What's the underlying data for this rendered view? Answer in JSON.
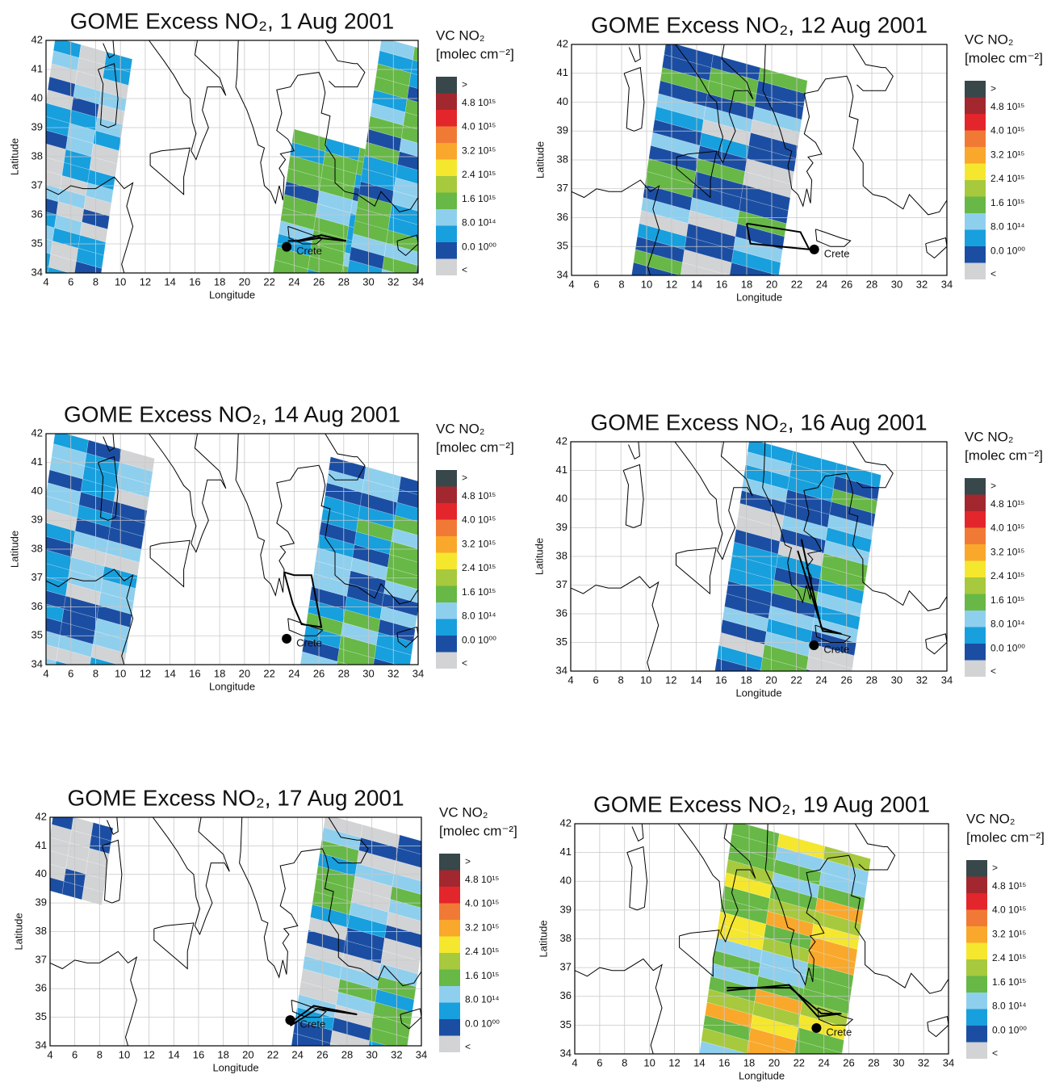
{
  "panels": [
    {
      "title": "GOME Excess NO₂, 1 Aug 2001"
    },
    {
      "title": "GOME Excess NO₂, 12 Aug 2001"
    },
    {
      "title": "GOME Excess NO₂, 14 Aug 2001"
    },
    {
      "title": "GOME Excess NO₂, 16 Aug 2001"
    },
    {
      "title": "GOME Excess NO₂, 17 Aug 2001"
    },
    {
      "title": "GOME Excess NO₂, 19 Aug 2001"
    }
  ],
  "axes": {
    "xlabel": "Longitude",
    "ylabel": "Latitude",
    "xlim": [
      4,
      34
    ],
    "ylim": [
      34,
      42
    ],
    "xticks": [
      4,
      6,
      8,
      10,
      12,
      14,
      16,
      18,
      20,
      22,
      24,
      26,
      28,
      30,
      32,
      34
    ],
    "yticks": [
      34,
      35,
      36,
      37,
      38,
      39,
      40,
      41,
      42
    ],
    "grid": true
  },
  "colorbar": {
    "title": "VC NO₂",
    "unit": "[molec cm⁻²]",
    "labels": [
      ">",
      "4.8 10¹⁵",
      "4.0 10¹⁵",
      "3.2 10¹⁵",
      "2.4 10¹⁵",
      "1.6 10¹⁵",
      "8.0 10¹⁴",
      "0.0 10⁰⁰",
      "<"
    ],
    "colors": [
      "#37474a",
      "#a3272f",
      "#e3262b",
      "#f07a35",
      "#f9a82b",
      "#f5e72e",
      "#a7c93d",
      "#67b846",
      "#8fcfee",
      "#189fdd",
      "#1b4ea2",
      "#d2d3d5"
    ]
  },
  "site": "Crete"
}
